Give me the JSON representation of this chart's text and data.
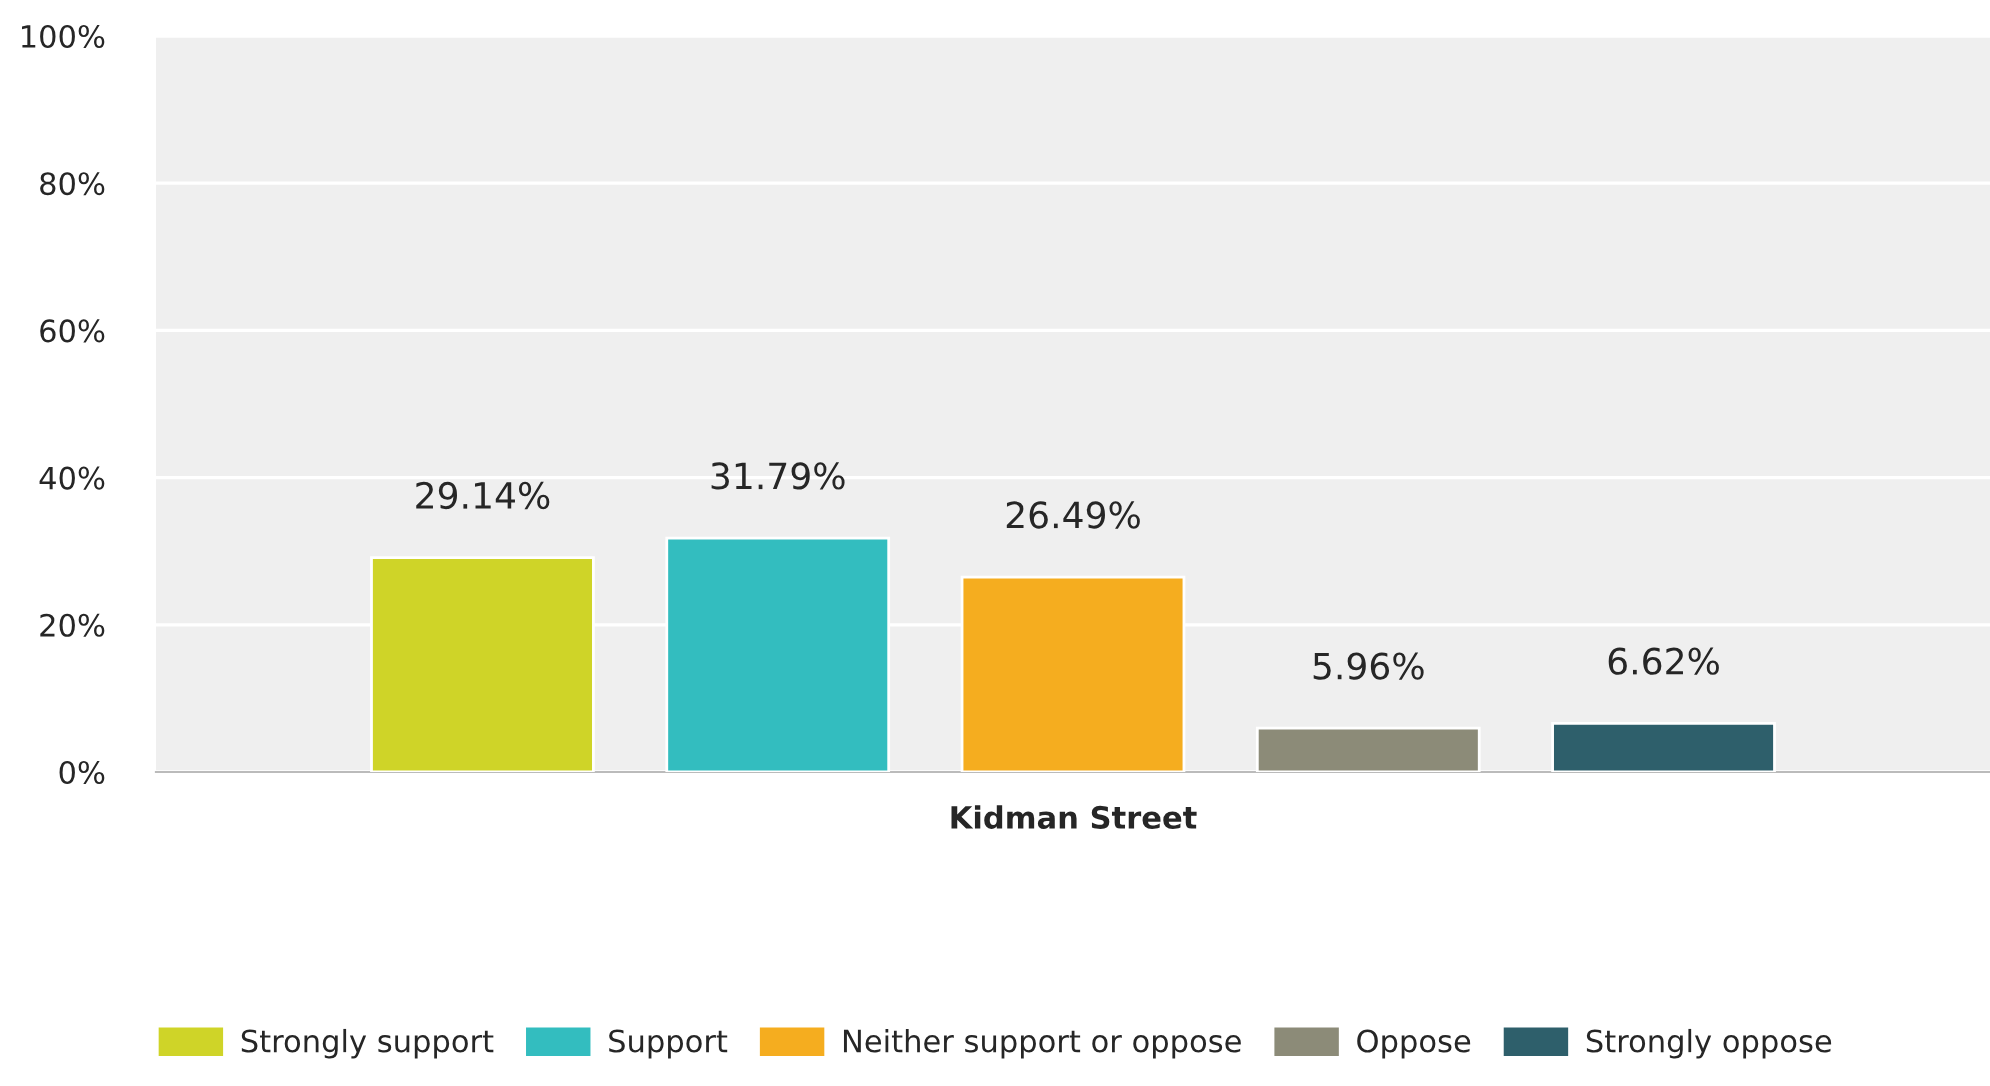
{
  "chart_data": {
    "type": "bar",
    "categories": [
      "Kidman Street"
    ],
    "series": [
      {
        "name": "Strongly support",
        "color": "#cfd428",
        "values": [
          29.14
        ],
        "value_labels": [
          "29.14%"
        ]
      },
      {
        "name": "Support",
        "color": "#33bdbf",
        "values": [
          31.79
        ],
        "value_labels": [
          "31.79%"
        ]
      },
      {
        "name": "Neither support or oppose",
        "color": "#f5ad1f",
        "values": [
          26.49
        ],
        "value_labels": [
          "26.49%"
        ]
      },
      {
        "name": "Oppose",
        "color": "#8c8b78",
        "values": [
          5.96
        ],
        "value_labels": [
          "5.96%"
        ]
      },
      {
        "name": "Strongly oppose",
        "color": "#2e5f6b",
        "values": [
          6.62
        ],
        "value_labels": [
          "6.62%"
        ]
      }
    ],
    "ylim": [
      0,
      100
    ],
    "yticks": [
      {
        "value": 0,
        "label": "0%"
      },
      {
        "value": 20,
        "label": "20%"
      },
      {
        "value": 40,
        "label": "40%"
      },
      {
        "value": 60,
        "label": "60%"
      },
      {
        "value": 80,
        "label": "80%"
      },
      {
        "value": 100,
        "label": "100%"
      }
    ],
    "grid": "y",
    "legend": "bottom"
  }
}
